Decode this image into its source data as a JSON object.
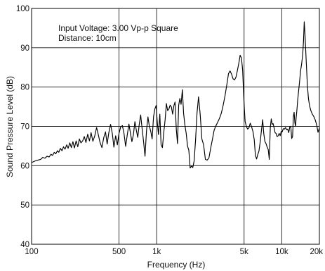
{
  "chart_data": {
    "type": "line",
    "title": "",
    "annotations": [
      "Input Voltage: 3.00 Vp-p Square",
      "Distance: 10cm"
    ],
    "xlabel": "Frequency (Hz)",
    "ylabel": "Sound Pressure Level (dB)",
    "xscale": "log",
    "xlim": [
      100,
      20000
    ],
    "ylim": [
      40,
      100
    ],
    "grid": true,
    "legend": "none",
    "line_color": "#000000",
    "x_ticks": [
      {
        "value": 100,
        "label": "100"
      },
      {
        "value": 500,
        "label": "500"
      },
      {
        "value": 1000,
        "label": "1k"
      },
      {
        "value": 5000,
        "label": "5k"
      },
      {
        "value": 10000,
        "label": "10k"
      },
      {
        "value": 20000,
        "label": "20k"
      }
    ],
    "y_ticks": [
      {
        "value": 40,
        "label": "40"
      },
      {
        "value": 50,
        "label": "50"
      },
      {
        "value": 60,
        "label": "60"
      },
      {
        "value": 70,
        "label": "70"
      },
      {
        "value": 80,
        "label": "80"
      },
      {
        "value": 90,
        "label": "90"
      },
      {
        "value": 100,
        "label": "100"
      }
    ],
    "series": [
      {
        "points": [
          [
            100,
            60.8
          ],
          [
            107,
            61.2
          ],
          [
            112,
            61.4
          ],
          [
            118,
            61.6
          ],
          [
            123,
            62.1
          ],
          [
            128,
            61.9
          ],
          [
            133,
            62.4
          ],
          [
            138,
            62.2
          ],
          [
            143,
            62.9
          ],
          [
            147,
            62.6
          ],
          [
            152,
            63.4
          ],
          [
            156,
            63.0
          ],
          [
            161,
            63.8
          ],
          [
            165,
            63.4
          ],
          [
            170,
            64.4
          ],
          [
            175,
            63.8
          ],
          [
            180,
            64.8
          ],
          [
            185,
            64.2
          ],
          [
            191,
            65.3
          ],
          [
            196,
            64.4
          ],
          [
            202,
            65.8
          ],
          [
            208,
            64.6
          ],
          [
            214,
            66.1
          ],
          [
            220,
            64.5
          ],
          [
            227,
            66.3
          ],
          [
            234,
            64.8
          ],
          [
            241,
            66.8
          ],
          [
            248,
            65.8
          ],
          [
            256,
            66.3
          ],
          [
            264,
            67.4
          ],
          [
            272,
            65.9
          ],
          [
            281,
            68.0
          ],
          [
            290,
            66.3
          ],
          [
            299,
            68.4
          ],
          [
            309,
            66.2
          ],
          [
            320,
            67.6
          ],
          [
            331,
            69.7
          ],
          [
            342,
            67.8
          ],
          [
            352,
            66.0
          ],
          [
            365,
            64.6
          ],
          [
            378,
            67.2
          ],
          [
            390,
            68.6
          ],
          [
            402,
            65.5
          ],
          [
            414,
            68.3
          ],
          [
            428,
            70.5
          ],
          [
            442,
            68.2
          ],
          [
            455,
            64.7
          ],
          [
            470,
            67.6
          ],
          [
            485,
            65.3
          ],
          [
            500,
            68.2
          ],
          [
            515,
            69.8
          ],
          [
            532,
            70.2
          ],
          [
            548,
            68.2
          ],
          [
            565,
            64.9
          ],
          [
            582,
            67.8
          ],
          [
            600,
            70.6
          ],
          [
            617,
            68.3
          ],
          [
            634,
            66.1
          ],
          [
            652,
            67.9
          ],
          [
            670,
            71.2
          ],
          [
            688,
            69.0
          ],
          [
            706,
            67.2
          ],
          [
            725,
            70.4
          ],
          [
            745,
            72.9
          ],
          [
            765,
            69.4
          ],
          [
            786,
            66.1
          ],
          [
            807,
            62.4
          ],
          [
            830,
            69.0
          ],
          [
            852,
            72.4
          ],
          [
            873,
            70.1
          ],
          [
            896,
            68.8
          ],
          [
            920,
            66.8
          ],
          [
            944,
            72.4
          ],
          [
            967,
            74.4
          ],
          [
            990,
            75.3
          ],
          [
            1012,
            71.0
          ],
          [
            1035,
            67.9
          ],
          [
            1060,
            73.1
          ],
          [
            1085,
            65.3
          ],
          [
            1112,
            64.6
          ],
          [
            1140,
            68.5
          ],
          [
            1168,
            71.6
          ],
          [
            1196,
            75.8
          ],
          [
            1224,
            74.0
          ],
          [
            1252,
            74.4
          ],
          [
            1282,
            75.4
          ],
          [
            1312,
            74.9
          ],
          [
            1342,
            73.1
          ],
          [
            1372,
            75.2
          ],
          [
            1403,
            76.2
          ],
          [
            1436,
            69.2
          ],
          [
            1468,
            65.6
          ],
          [
            1500,
            75.4
          ],
          [
            1533,
            77.1
          ],
          [
            1568,
            75.6
          ],
          [
            1605,
            79.3
          ],
          [
            1642,
            73.3
          ],
          [
            1682,
            70.3
          ],
          [
            1723,
            68.2
          ],
          [
            1765,
            65.0
          ],
          [
            1808,
            63.9
          ],
          [
            1852,
            59.4
          ],
          [
            1898,
            59.9
          ],
          [
            1945,
            59.5
          ],
          [
            1993,
            61.2
          ],
          [
            2045,
            66.3
          ],
          [
            2102,
            73.4
          ],
          [
            2162,
            77.5
          ],
          [
            2228,
            73.1
          ],
          [
            2298,
            66.8
          ],
          [
            2373,
            65.3
          ],
          [
            2452,
            61.6
          ],
          [
            2535,
            61.4
          ],
          [
            2620,
            62.0
          ],
          [
            2705,
            64.5
          ],
          [
            2792,
            66.7
          ],
          [
            2880,
            69.0
          ],
          [
            2972,
            70.1
          ],
          [
            3070,
            71.0
          ],
          [
            3175,
            72.0
          ],
          [
            3285,
            73.3
          ],
          [
            3400,
            75.3
          ],
          [
            3520,
            77.8
          ],
          [
            3640,
            80.6
          ],
          [
            3752,
            83.4
          ],
          [
            3862,
            84.1
          ],
          [
            3970,
            83.3
          ],
          [
            4080,
            82.1
          ],
          [
            4190,
            81.8
          ],
          [
            4305,
            82.5
          ],
          [
            4420,
            84.2
          ],
          [
            4540,
            86.1
          ],
          [
            4650,
            88.1
          ],
          [
            4762,
            87.4
          ],
          [
            4872,
            84.2
          ],
          [
            4983,
            76.6
          ],
          [
            5095,
            71.3
          ],
          [
            5210,
            70.0
          ],
          [
            5335,
            69.3
          ],
          [
            5465,
            69.6
          ],
          [
            5600,
            70.8
          ],
          [
            5740,
            69.9
          ],
          [
            5885,
            68.7
          ],
          [
            6030,
            66.6
          ],
          [
            6160,
            62.6
          ],
          [
            6295,
            61.7
          ],
          [
            6430,
            62.8
          ],
          [
            6575,
            63.7
          ],
          [
            6730,
            66.1
          ],
          [
            6890,
            69.1
          ],
          [
            7040,
            71.7
          ],
          [
            7180,
            68.2
          ],
          [
            7330,
            66.2
          ],
          [
            7490,
            65.6
          ],
          [
            7650,
            64.7
          ],
          [
            7800,
            64.1
          ],
          [
            7950,
            61.6
          ],
          [
            8100,
            69.6
          ],
          [
            8245,
            71.9
          ],
          [
            8385,
            70.5
          ],
          [
            8535,
            70.7
          ],
          [
            8690,
            69.6
          ],
          [
            8845,
            68.4
          ],
          [
            9010,
            68.2
          ],
          [
            9180,
            67.4
          ],
          [
            9355,
            67.6
          ],
          [
            9535,
            68.2
          ],
          [
            9720,
            67.6
          ],
          [
            9900,
            68.7
          ],
          [
            10090,
            68.6
          ],
          [
            10290,
            69.4
          ],
          [
            10500,
            69.3
          ],
          [
            10720,
            69.7
          ],
          [
            10950,
            69.1
          ],
          [
            11160,
            69.3
          ],
          [
            11380,
            68.4
          ],
          [
            11600,
            69.9
          ],
          [
            11810,
            70.0
          ],
          [
            12010,
            66.9
          ],
          [
            12210,
            67.4
          ],
          [
            12390,
            72.5
          ],
          [
            12560,
            73.6
          ],
          [
            12730,
            71.0
          ],
          [
            12890,
            70.0
          ],
          [
            13050,
            72.3
          ],
          [
            13210,
            74.0
          ],
          [
            13400,
            76.5
          ],
          [
            13620,
            78.8
          ],
          [
            13880,
            81.3
          ],
          [
            14160,
            84.2
          ],
          [
            14440,
            86.0
          ],
          [
            14720,
            88.4
          ],
          [
            14930,
            91.7
          ],
          [
            15130,
            96.6
          ],
          [
            15330,
            93.7
          ],
          [
            15540,
            89.5
          ],
          [
            15780,
            85.0
          ],
          [
            16050,
            80.3
          ],
          [
            16350,
            77.1
          ],
          [
            16700,
            75.2
          ],
          [
            17100,
            74.0
          ],
          [
            17550,
            73.1
          ],
          [
            18050,
            72.5
          ],
          [
            18550,
            71.6
          ],
          [
            19050,
            70.3
          ],
          [
            19500,
            68.5
          ],
          [
            20000,
            69.6
          ]
        ]
      }
    ]
  }
}
